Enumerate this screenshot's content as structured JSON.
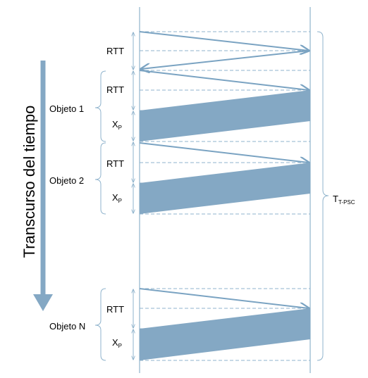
{
  "time_axis_label": "Transcurso del tiempo",
  "total_label": {
    "main": "T",
    "sub": "T-PSC"
  },
  "rtt_label": "RTT",
  "xp_label": {
    "main": "X",
    "sub": "P"
  },
  "objects": [
    {
      "name": "Objeto 1"
    },
    {
      "name": "Objeto 2"
    },
    {
      "name": "Objeto N"
    }
  ],
  "colors": {
    "timeline": "#8fb3cc",
    "arrow": "#7aa3c2",
    "fill": "#84a8c4",
    "dashed": "#8fb3cc"
  }
}
